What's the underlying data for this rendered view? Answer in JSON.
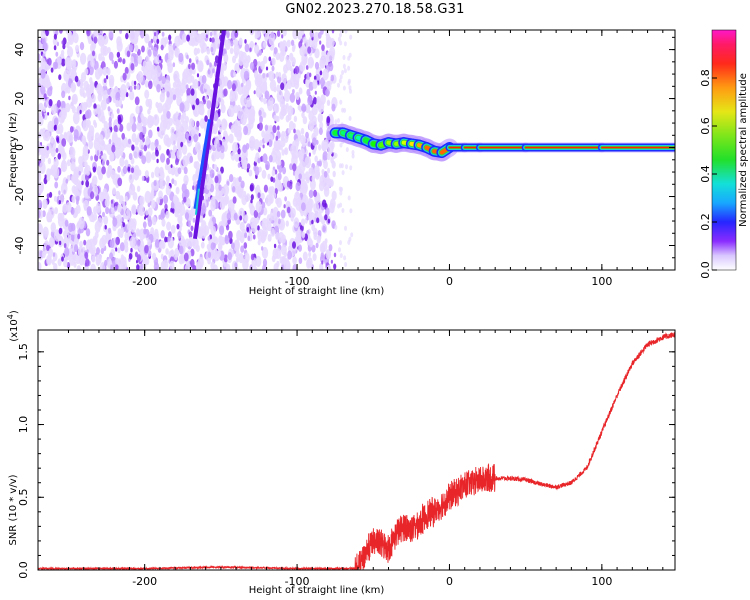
{
  "title": "GN02.2023.270.18.58.G31",
  "chart_data": [
    {
      "type": "heatmap",
      "xlabel": "Height of straight line (km)",
      "ylabel": "Frequency (Hz)",
      "xlim": [
        -270,
        148
      ],
      "ylim": [
        -50,
        48
      ],
      "x_ticks": [
        -200,
        -100,
        0,
        100
      ],
      "y_ticks": [
        -40,
        -20,
        0,
        20,
        40
      ],
      "colorbar": {
        "label": "Normalized spectral amplitude",
        "range": [
          0,
          1
        ],
        "ticks": [
          0.0,
          0.2,
          0.4,
          0.6,
          0.8
        ]
      },
      "features": {
        "noise_region_x": [
          -270,
          -75
        ],
        "slanted_line": {
          "x_start": -167,
          "y_start": -25,
          "x_end": -148,
          "y_end": 48
        },
        "ridge": {
          "x": [
            -75,
            -70,
            -65,
            -60,
            -55,
            -50,
            -45,
            -40,
            -35,
            -30,
            -25,
            -20,
            -15,
            -10,
            -5,
            0,
            10,
            20,
            50,
            100,
            148
          ],
          "y": [
            6,
            6,
            5,
            4,
            3,
            1.5,
            1,
            2,
            1.5,
            2,
            1.5,
            1,
            0,
            -1.5,
            -2,
            0,
            0,
            0,
            0,
            0,
            0
          ],
          "amplitude": [
            0.55,
            0.5,
            0.5,
            0.45,
            0.55,
            0.6,
            0.65,
            0.7,
            0.7,
            0.75,
            0.8,
            0.85,
            0.9,
            0.9,
            0.9,
            0.95,
            0.95,
            0.95,
            0.95,
            0.95,
            0.95
          ]
        }
      }
    },
    {
      "type": "line",
      "xlabel": "Height of straight line (km)",
      "ylabel": "SNR (10 * v/v)",
      "y_scale_label": "(x10",
      "y_scale_exp": "4",
      "xlim": [
        -270,
        148
      ],
      "ylim": [
        0,
        1.65
      ],
      "x_ticks": [
        -200,
        -100,
        0,
        100
      ],
      "y_ticks": [
        0.0,
        0.5,
        1.0,
        1.5
      ],
      "series": [
        {
          "color": "#e8262a",
          "x": [
            -270,
            -200,
            -150,
            -100,
            -75,
            -60,
            -55,
            -50,
            -45,
            -40,
            -35,
            -30,
            -25,
            -20,
            -15,
            -10,
            -5,
            0,
            10,
            20,
            30,
            40,
            50,
            60,
            70,
            80,
            90,
            100,
            110,
            120,
            130,
            140,
            148
          ],
          "y": [
            0.01,
            0.01,
            0.02,
            0.01,
            0.01,
            0.01,
            0.12,
            0.2,
            0.18,
            0.15,
            0.25,
            0.3,
            0.28,
            0.32,
            0.38,
            0.4,
            0.45,
            0.5,
            0.58,
            0.62,
            0.63,
            0.63,
            0.62,
            0.59,
            0.57,
            0.6,
            0.7,
            0.95,
            1.2,
            1.42,
            1.55,
            1.6,
            1.62
          ]
        }
      ]
    }
  ]
}
